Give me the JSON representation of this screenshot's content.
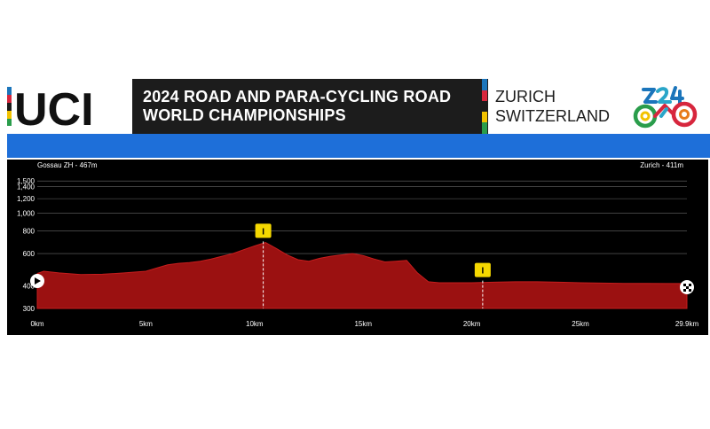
{
  "header": {
    "brand": "UCI",
    "title_line1": "2024 ROAD AND PARA-CYCLING ROAD",
    "title_line2": "WORLD CHAMPIONSHIPS",
    "city_line1": "ZURICH",
    "city_line2": "SWITZERLAND"
  },
  "colors": {
    "rainbow": [
      "#1b75bb",
      "#d7263d",
      "#1c1c1c",
      "#f2c200",
      "#2a9d4b"
    ],
    "accent_blue": "#1e6fd9",
    "profile_fill": "#9b1111",
    "chart_bg": "#000000",
    "marker_yellow": "#f5d800"
  },
  "chart_data": {
    "type": "area",
    "title": "",
    "xlabel": "",
    "ylabel": "",
    "start_label": "Gossau ZH - 467m",
    "finish_label": "Zurich - 411m",
    "xlim": [
      0,
      29.9
    ],
    "ylim": [
      300,
      1700
    ],
    "x_ticks": [
      0,
      5,
      10,
      15,
      20,
      25,
      29.9
    ],
    "x_tick_labels": [
      "0km",
      "5km",
      "10km",
      "15km",
      "20km",
      "25km",
      "29.9km"
    ],
    "y_ticks": [
      300,
      400,
      600,
      800,
      1000,
      1200,
      1400,
      1500
    ],
    "y_tick_labels": [
      "300",
      "400",
      "600",
      "800",
      "1,000",
      "1,200",
      "1,400",
      "1,500"
    ],
    "grid": true,
    "series": [
      {
        "x": [
          0,
          0.3,
          1,
          2,
          3,
          4,
          5,
          5.5,
          6,
          6.5,
          7,
          7.5,
          8,
          8.5,
          9,
          9.5,
          10,
          10.5,
          11,
          11.5,
          12,
          12.5,
          13,
          13.5,
          14,
          14.5,
          15,
          15.5,
          16,
          16.5,
          17,
          17.5,
          18,
          18.5,
          19,
          20,
          21,
          22,
          23,
          24,
          25,
          26,
          27,
          28,
          29,
          29.9
        ],
        "y": [
          467,
          480,
          470,
          460,
          462,
          470,
          480,
          500,
          520,
          530,
          535,
          545,
          560,
          580,
          600,
          630,
          660,
          690,
          640,
          590,
          555,
          545,
          565,
          580,
          590,
          600,
          585,
          560,
          540,
          545,
          550,
          470,
          420,
          415,
          415,
          415,
          418,
          420,
          420,
          418,
          415,
          413,
          412,
          412,
          411,
          411
        ]
      }
    ],
    "markers": [
      {
        "type": "intermediate",
        "label": "I",
        "x": 10.4
      },
      {
        "type": "intermediate",
        "label": "I",
        "x": 20.5
      }
    ]
  }
}
